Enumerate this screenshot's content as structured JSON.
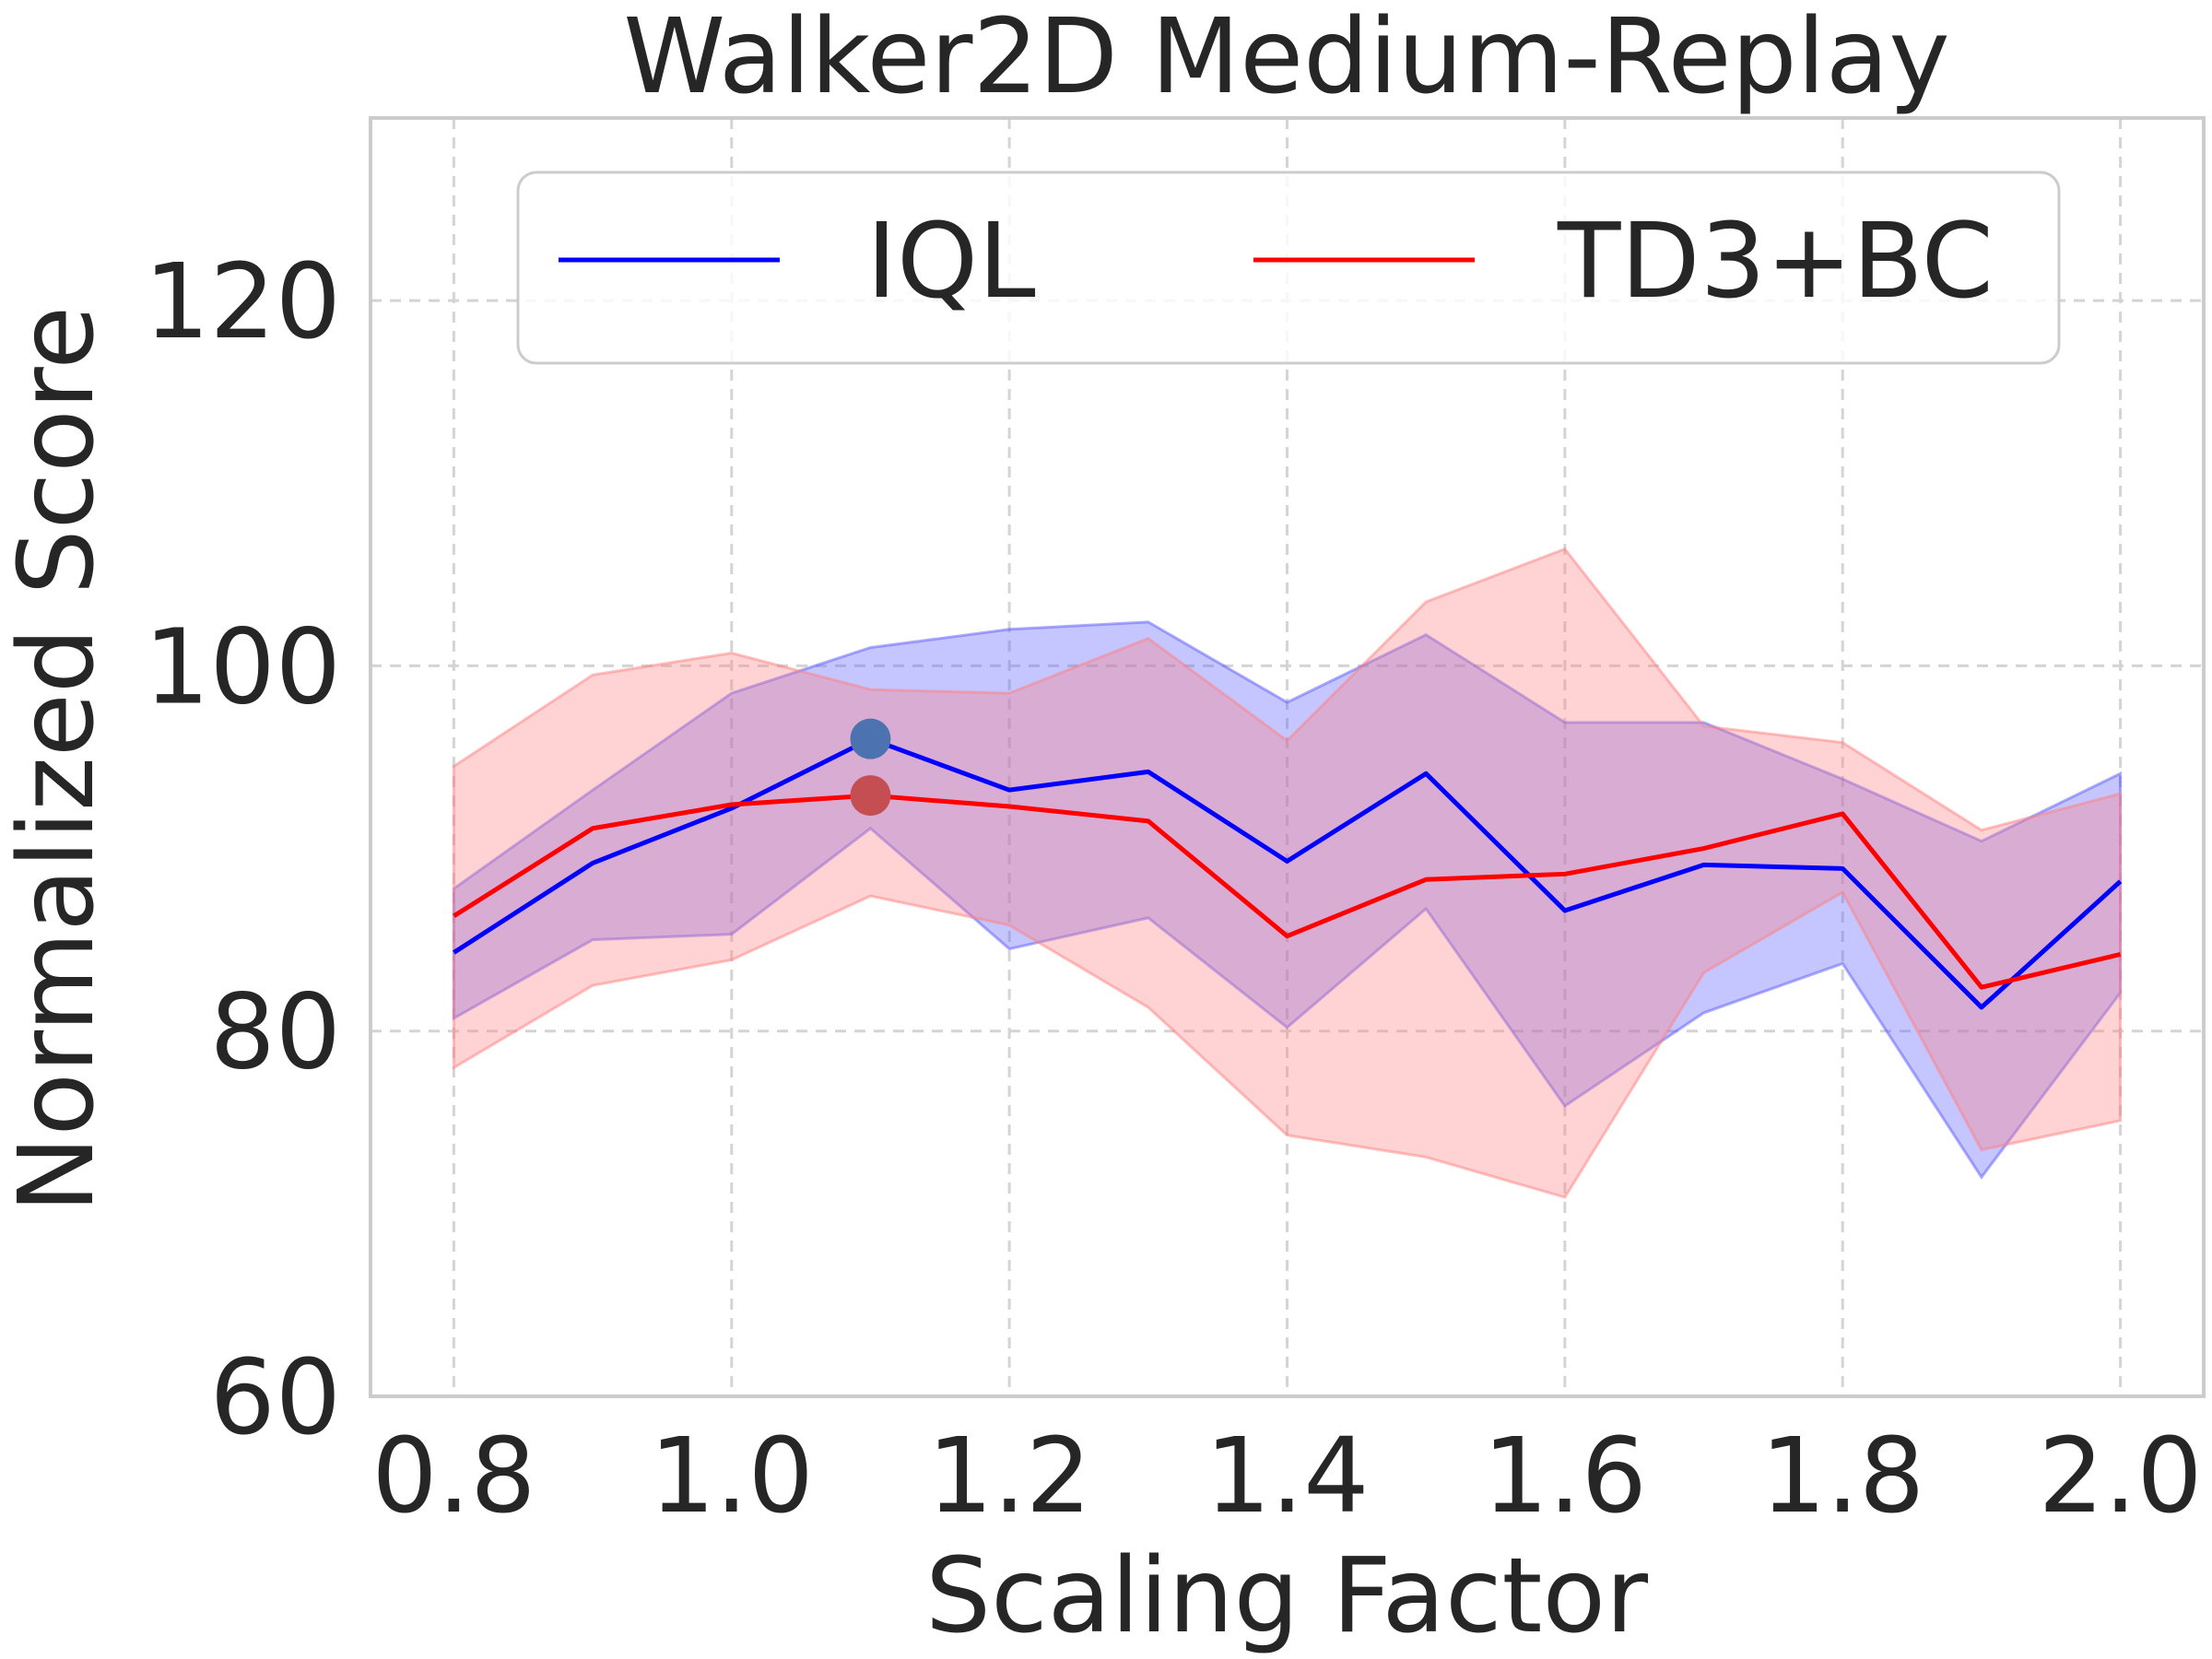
{
  "chart_data": {
    "type": "line",
    "title": "Walker2D Medium-Replay",
    "xlabel": "Scaling Factor",
    "ylabel": "Normalized Score",
    "xlim": [
      0.74,
      2.06
    ],
    "ylim": [
      60,
      130
    ],
    "x_ticks": [
      0.8,
      1.0,
      1.2,
      1.4,
      1.6,
      1.8,
      2.0
    ],
    "x_tick_labels": [
      "0.8",
      "1.0",
      "1.2",
      "1.4",
      "1.6",
      "1.8",
      "2.0"
    ],
    "y_ticks": [
      60,
      80,
      100,
      120
    ],
    "y_tick_labels": [
      "60",
      "80",
      "100",
      "120"
    ],
    "grid": true,
    "legend": {
      "placement": "top",
      "columns": 2
    },
    "x": [
      0.8,
      0.9,
      1.0,
      1.1,
      1.2,
      1.3,
      1.4,
      1.5,
      1.6,
      1.7,
      1.8,
      1.9,
      2.0
    ],
    "series": [
      {
        "name": "IQL",
        "color": "#0000ff",
        "band_color": "#5a5aff",
        "marker_color": "#4c72b0",
        "values": [
          84.3,
          89.2,
          92.2,
          96.0,
          93.2,
          94.2,
          89.3,
          94.1,
          86.6,
          89.1,
          88.9,
          81.3,
          88.2
        ],
        "upper": [
          87.8,
          93.2,
          98.5,
          101.0,
          102.0,
          102.4,
          98.0,
          101.7,
          96.9,
          96.9,
          93.8,
          90.4,
          94.1
        ],
        "lower": [
          80.7,
          85.0,
          85.3,
          91.1,
          84.5,
          86.2,
          80.2,
          86.7,
          75.9,
          81.0,
          83.7,
          72.0,
          82.1
        ],
        "highlight_x": 1.1
      },
      {
        "name": "TD3+BC",
        "color": "#ff0000",
        "band_color": "#ff8080",
        "marker_color": "#c44e52",
        "values": [
          86.3,
          91.1,
          92.4,
          92.9,
          92.3,
          91.5,
          85.2,
          88.3,
          88.6,
          90.0,
          91.9,
          82.4,
          84.2
        ],
        "upper": [
          94.5,
          99.5,
          100.7,
          98.7,
          98.5,
          101.5,
          95.9,
          103.5,
          106.4,
          96.7,
          95.8,
          91.0,
          93.0
        ],
        "lower": [
          78.0,
          82.5,
          83.9,
          87.4,
          85.8,
          81.3,
          74.3,
          73.1,
          70.9,
          83.2,
          87.6,
          73.5,
          75.1
        ],
        "highlight_x": 1.1
      }
    ]
  }
}
